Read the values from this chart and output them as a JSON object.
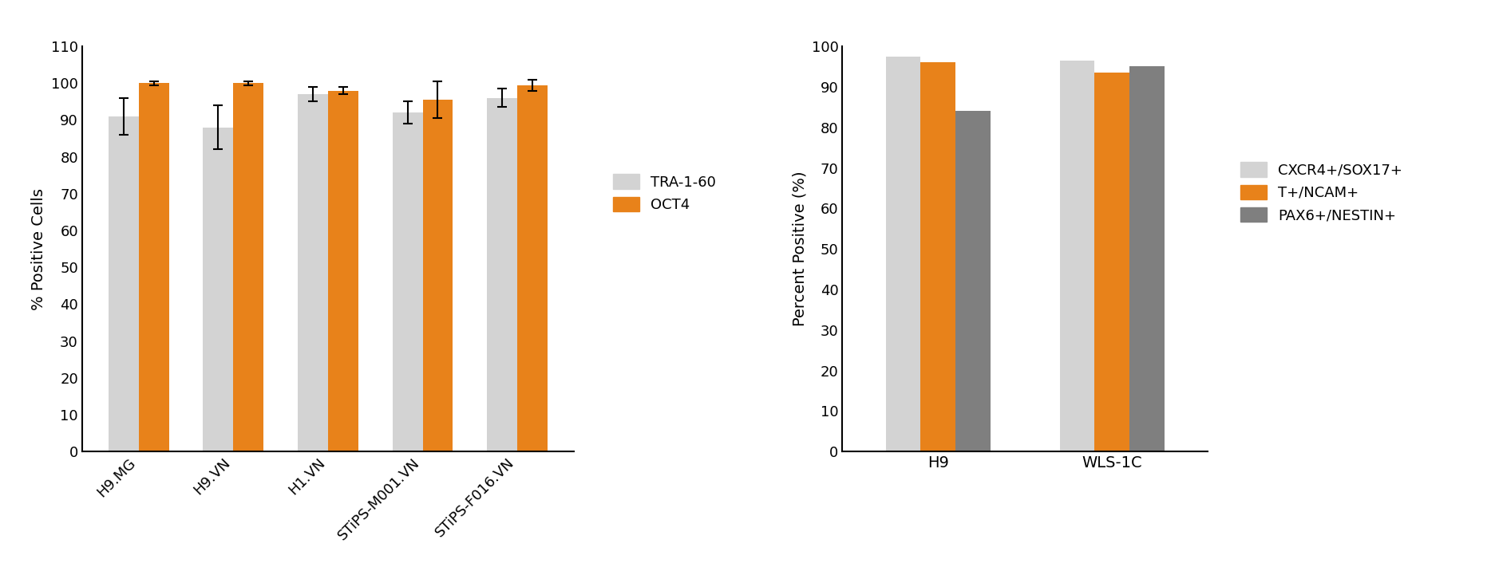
{
  "chart1": {
    "categories": [
      "H9.MG",
      "H9.VN",
      "H1.VN",
      "STiPS-M001.VN",
      "STiPS-F016.VN"
    ],
    "tra160_values": [
      91,
      88,
      97,
      92,
      96
    ],
    "oct4_values": [
      100,
      100,
      98,
      95.5,
      99.5
    ],
    "tra160_errors": [
      5,
      6,
      2,
      3,
      2.5
    ],
    "oct4_errors": [
      0.5,
      0.5,
      1,
      5,
      1.5
    ],
    "ylabel": "% Positive Cells",
    "ylim": [
      0,
      110
    ],
    "yticks": [
      0,
      10,
      20,
      30,
      40,
      50,
      60,
      70,
      80,
      90,
      100,
      110
    ],
    "tra160_color": "#d3d3d3",
    "oct4_color": "#e8821a",
    "bar_width": 0.32,
    "legend_labels": [
      "TRA-1-60",
      "OCT4"
    ]
  },
  "chart2": {
    "groups": [
      "H9",
      "WLS-1C"
    ],
    "cxcr4_values": [
      97.5,
      96.5
    ],
    "tncam_values": [
      96,
      93.5
    ],
    "pax6_values": [
      84,
      95
    ],
    "ylabel": "Percent Positive (%)",
    "ylim": [
      0,
      100
    ],
    "yticks": [
      0,
      10,
      20,
      30,
      40,
      50,
      60,
      70,
      80,
      90,
      100
    ],
    "cxcr4_color": "#d3d3d3",
    "tncam_color": "#e8821a",
    "pax6_color": "#7f7f7f",
    "bar_width": 0.2,
    "legend_labels": [
      "CXCR4+/SOX17+",
      "T+/NCAM+",
      "PAX6+/NESTIN+"
    ]
  },
  "bg_color": "#ffffff",
  "font_size": 14,
  "tick_font_size": 13,
  "legend_font_size": 13
}
